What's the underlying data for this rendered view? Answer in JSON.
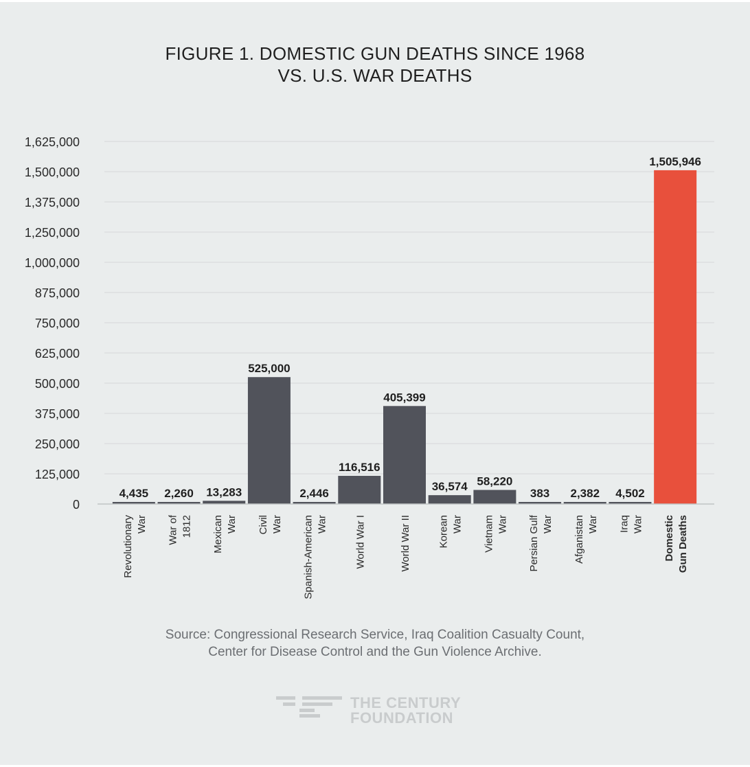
{
  "title": {
    "line1": "FIGURE 1. DOMESTIC GUN DEATHS SINCE 1968",
    "line2": "VS. U.S. WAR DEATHS"
  },
  "source": {
    "line1": "Source: Congressional Research Service, Iraq Coalition Casualty Count,",
    "line2": "Center for Disease Control and the Gun Violence Archive."
  },
  "brand": {
    "line1": "THE CENTURY",
    "line2": "FOUNDATION"
  },
  "colors": {
    "background": "#eaeded",
    "bar": "#51535b",
    "highlight": "#e8503c",
    "grid": "#d9dcdd",
    "text": "#1f1f1f"
  },
  "chart_data": {
    "type": "bar",
    "title": "FIGURE 1. DOMESTIC GUN DEATHS SINCE 1968 VS. U.S. WAR DEATHS",
    "xlabel": "",
    "ylabel": "",
    "ylim": [
      0,
      1625000
    ],
    "yticks": [
      0,
      125000,
      250000,
      375000,
      500000,
      625000,
      750000,
      875000,
      1000000,
      1250000,
      1375000,
      1500000,
      1625000
    ],
    "ytick_labels": [
      "0",
      "125,000",
      "250,000",
      "375,000",
      "500,000",
      "625,000",
      "750,000",
      "875,000",
      "1,000,000",
      "1,250,000",
      "1,375,000",
      "1,500,000",
      "1,625,000"
    ],
    "grid": true,
    "categories": [
      [
        "Revolutionary",
        "War"
      ],
      [
        "War of",
        "1812"
      ],
      [
        "Mexican",
        "War"
      ],
      [
        "Civil",
        "War"
      ],
      [
        "Spanish-American",
        "War"
      ],
      [
        "World War I"
      ],
      [
        "World War II"
      ],
      [
        "Korean",
        "War"
      ],
      [
        "Vietnam",
        "War"
      ],
      [
        "Persian Gulf",
        "War"
      ],
      [
        "Afganistan",
        "War"
      ],
      [
        "Iraq",
        "War"
      ],
      [
        "Domestic",
        "Gun Deaths"
      ]
    ],
    "values": [
      4435,
      2260,
      13283,
      525000,
      2446,
      116516,
      405399,
      36574,
      58220,
      383,
      2382,
      4502,
      1505946
    ],
    "value_labels": [
      "4,435",
      "2,260",
      "13,283",
      "525,000",
      "2,446",
      "116,516",
      "405,399",
      "36,574",
      "58,220",
      "383",
      "2,382",
      "4,502",
      "1,505,946"
    ],
    "highlight_index": 12
  }
}
